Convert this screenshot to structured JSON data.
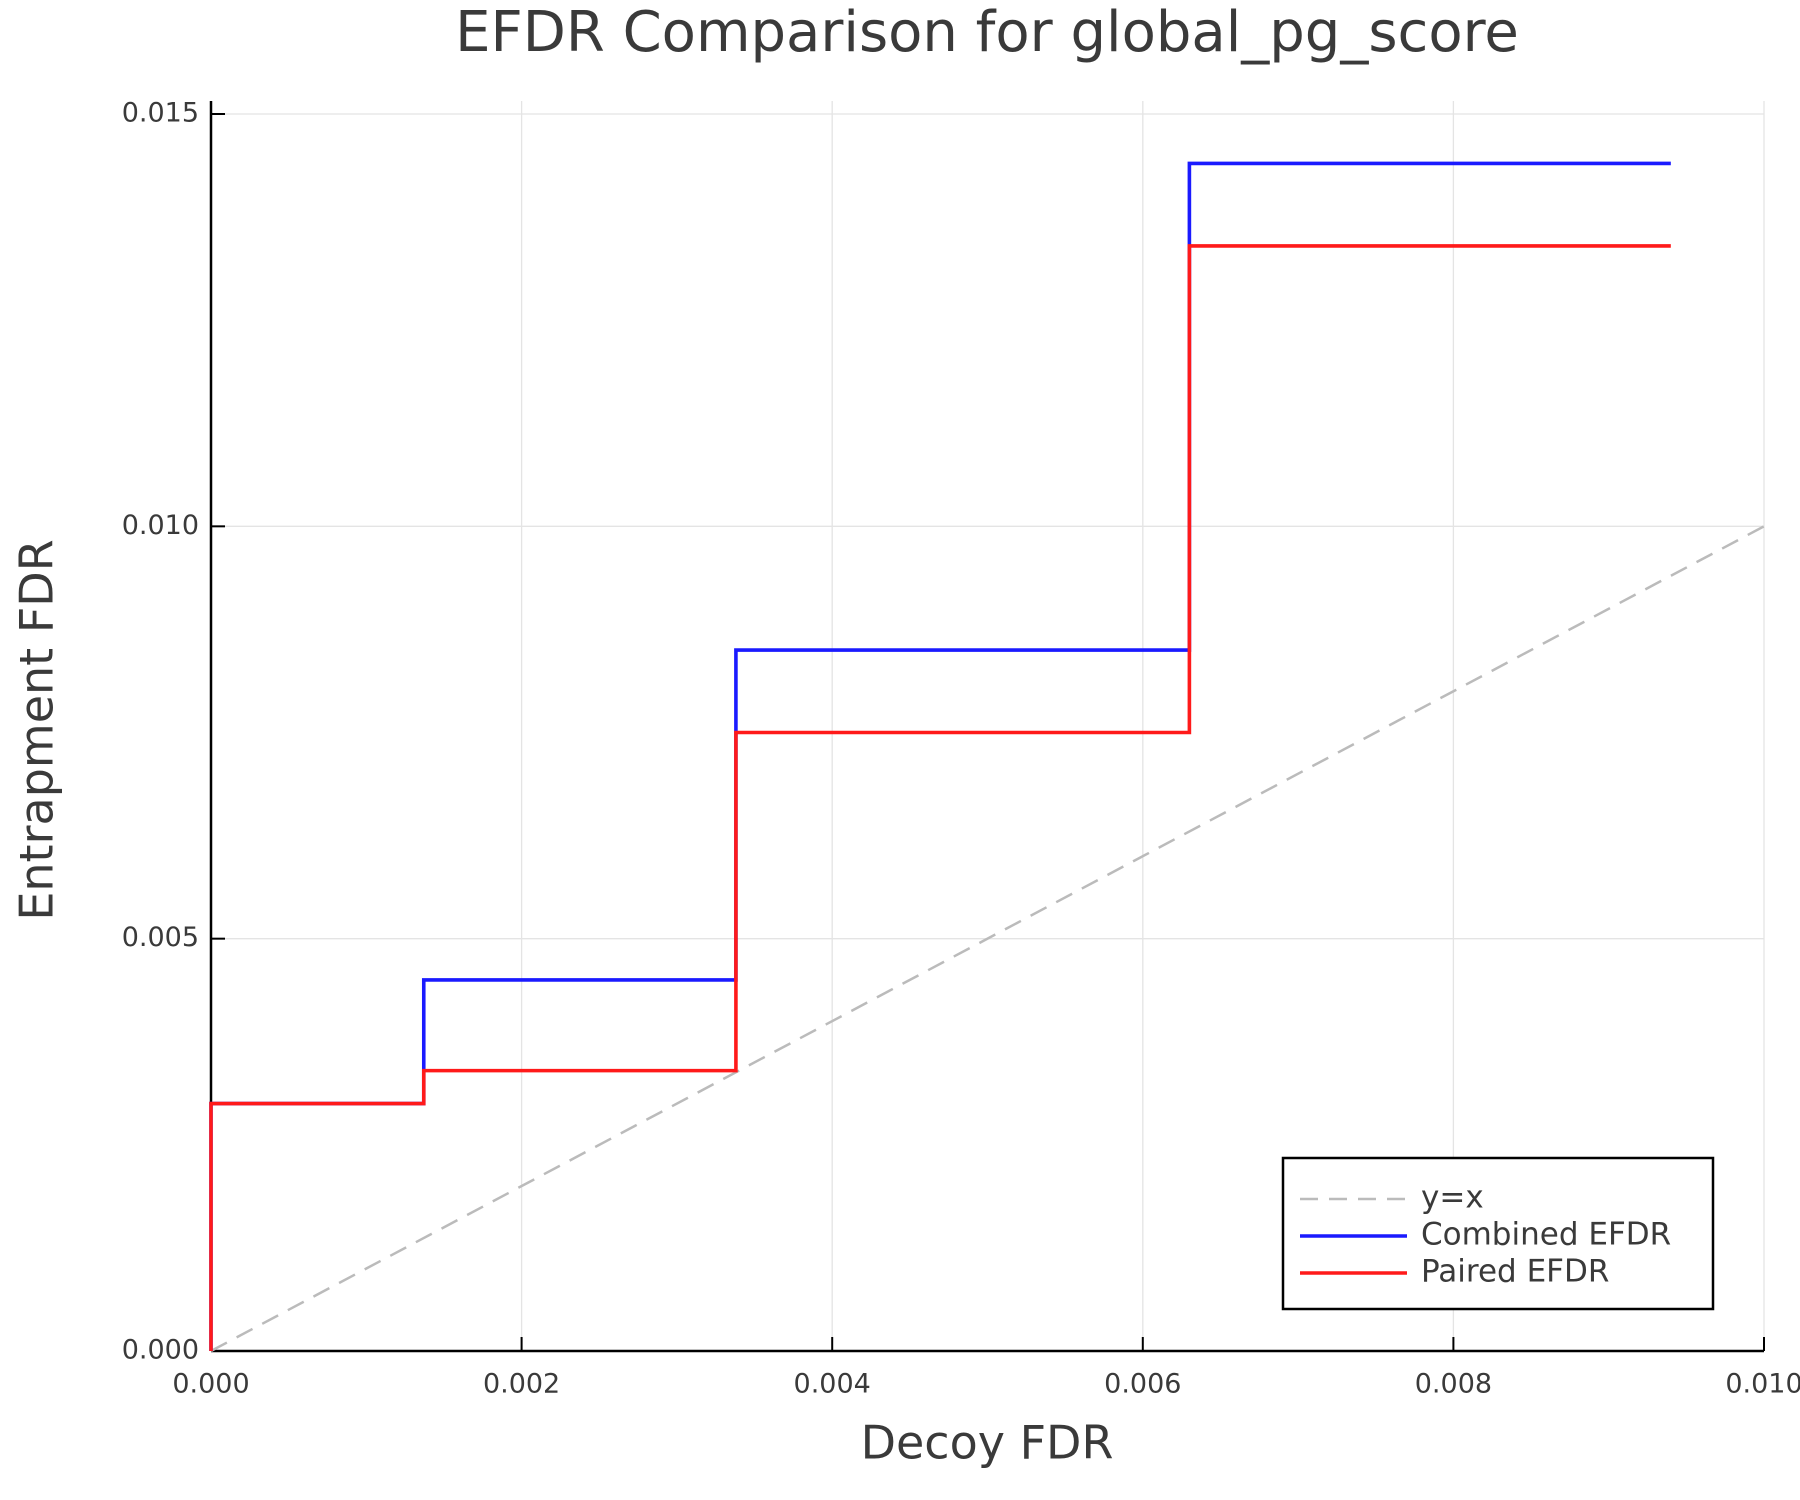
{
  "chart_data": {
    "type": "line",
    "title": "EFDR Comparison for global_pg_score",
    "x_label": "Decoy FDR",
    "y_label": "Entrapment FDR",
    "xlim": [
      0,
      0.01
    ],
    "ylim": [
      0,
      0.015
    ],
    "xticks": [
      {
        "value": 0,
        "label": "0.000"
      },
      {
        "value": 0.002,
        "label": "0.002"
      },
      {
        "value": 0.004,
        "label": "0.004"
      },
      {
        "value": 0.006,
        "label": "0.006"
      },
      {
        "value": 0.008,
        "label": "0.008"
      },
      {
        "value": 0.01,
        "label": "0.010"
      }
    ],
    "yticks": [
      {
        "value": 0,
        "label": "0.000"
      },
      {
        "value": 0.005,
        "label": "0.005"
      },
      {
        "value": 0.01,
        "label": "0.010"
      },
      {
        "value": 0.015,
        "label": "0.015"
      }
    ],
    "grid": true,
    "legend": "bottom-right",
    "series": [
      {
        "name": "y=x",
        "color": "#bbbbbb",
        "dash": true,
        "drawstyle": "linear",
        "x": [
          0,
          0.01
        ],
        "values": [
          0,
          0.01
        ]
      },
      {
        "name": "Combined EFDR",
        "color": "#1a1aff",
        "dash": false,
        "drawstyle": "steps-post",
        "x": [
          0,
          0,
          0.00137,
          0.00338,
          0.0063,
          0.0094
        ],
        "values": [
          0,
          0.003,
          0.0045,
          0.0085,
          0.0144,
          0.0144
        ]
      },
      {
        "name": "Paired EFDR",
        "color": "#ff1a1a",
        "dash": false,
        "drawstyle": "steps-post",
        "x": [
          0,
          0,
          0.00137,
          0.00338,
          0.0063,
          0.0094
        ],
        "values": [
          0,
          0.003,
          0.0034,
          0.0075,
          0.0134,
          0.0134
        ]
      }
    ]
  }
}
